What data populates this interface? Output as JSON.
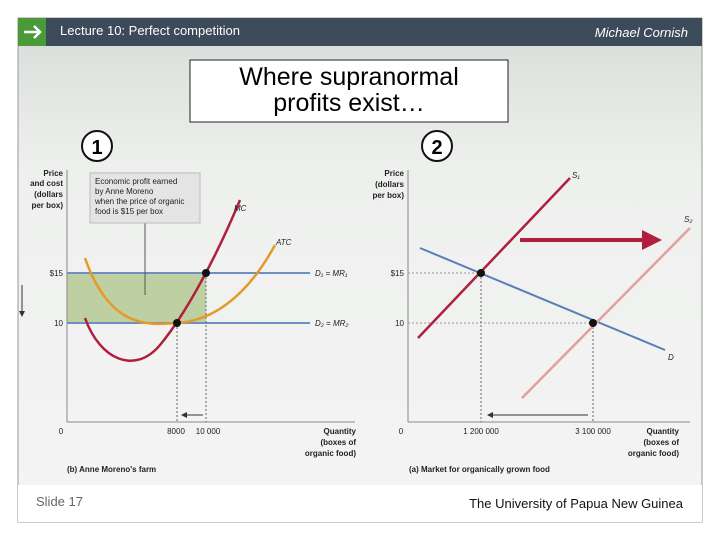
{
  "header": {
    "title": "Lecture 10:  Perfect competition",
    "author": "Michael Cornish"
  },
  "slide_title": [
    "Where supranormal",
    "profits exist…"
  ],
  "panels": [
    {
      "number": "1",
      "y_label": [
        "Price",
        "and cost",
        "(dollars",
        "per box)"
      ],
      "callout": [
        "Economic profit earned",
        "by Anne Moreno",
        "when the price of organic",
        "food is $15 per box"
      ],
      "curves": {
        "mc": "MC",
        "atc": "ATC",
        "d1": "D₁ = MR₁",
        "d2": "D₂ = MR₂"
      },
      "y_ticks": [
        "$15",
        "10"
      ],
      "origin": "0",
      "x_ticks": [
        "8000",
        "10 000"
      ],
      "x_label": [
        "Quantity",
        "(boxes of",
        "organic food)"
      ],
      "caption": "(b) Anne Moreno's farm"
    },
    {
      "number": "2",
      "y_label": [
        "Price",
        "(dollars",
        "per box)"
      ],
      "curves": {
        "s1": "S₁",
        "s2": "S₂",
        "d": "D"
      },
      "y_ticks": [
        "$15",
        "10"
      ],
      "origin": "0",
      "x_ticks": [
        "1 200 000",
        "3 100 000"
      ],
      "x_label": [
        "Quantity",
        "(boxes of",
        "organic food)"
      ],
      "caption": "(a) Market for organically grown food"
    }
  ],
  "footer": {
    "slide": "Slide 17",
    "institution": "The University of Papua New Guinea"
  }
}
